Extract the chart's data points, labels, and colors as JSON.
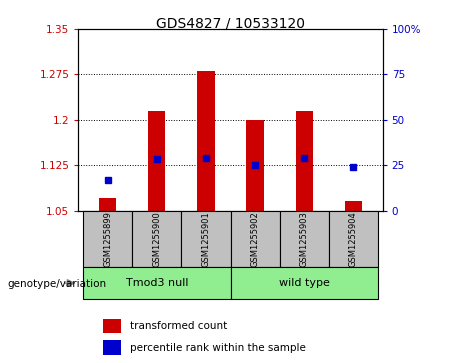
{
  "title": "GDS4827 / 10533120",
  "samples": [
    "GSM1255899",
    "GSM1255900",
    "GSM1255901",
    "GSM1255902",
    "GSM1255903",
    "GSM1255904"
  ],
  "red_values": [
    1.07,
    1.215,
    1.28,
    1.2,
    1.215,
    1.065
  ],
  "blue_values": [
    1.1,
    1.135,
    1.137,
    1.125,
    1.137,
    1.122
  ],
  "ylim_left": [
    1.05,
    1.35
  ],
  "ylim_right": [
    0,
    100
  ],
  "yticks_left": [
    1.05,
    1.125,
    1.2,
    1.275,
    1.35
  ],
  "yticks_right": [
    0,
    25,
    50,
    75,
    100
  ],
  "group_label": "genotype/variation",
  "legend_red": "transformed count",
  "legend_blue": "percentile rank within the sample",
  "bar_width": 0.35,
  "base_value": 1.05,
  "left_color": "#cc0000",
  "right_color": "#0000cc",
  "bg_xtick": "#c0c0c0",
  "bg_group": "#90EE90",
  "groups": [
    {
      "label": "Tmod3 null",
      "start": 0,
      "end": 3
    },
    {
      "label": "wild type",
      "start": 3,
      "end": 6
    }
  ]
}
